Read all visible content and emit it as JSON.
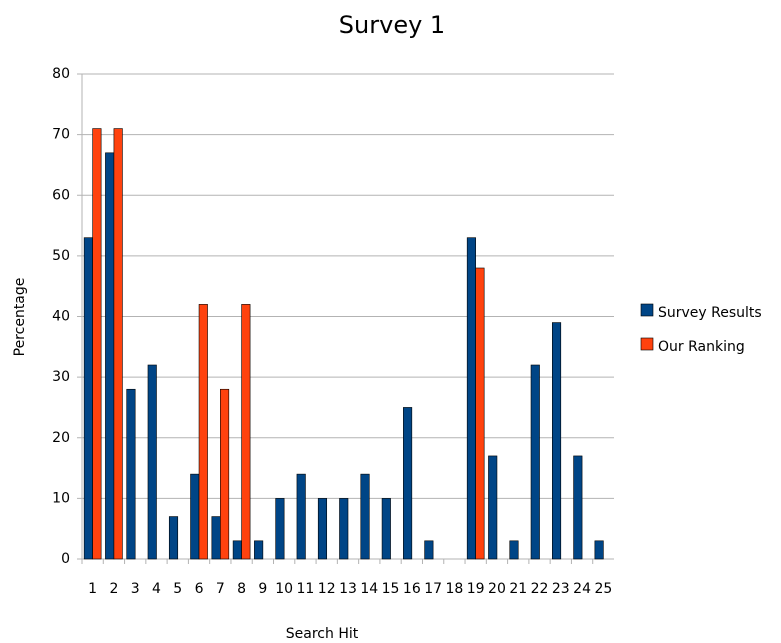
{
  "chart_data": {
    "type": "bar",
    "title": "Survey 1",
    "x_label": "Search Hit",
    "y_label": "Percentage",
    "categories": [
      "1",
      "2",
      "3",
      "4",
      "5",
      "6",
      "7",
      "8",
      "9",
      "10",
      "11",
      "12",
      "13",
      "14",
      "15",
      "16",
      "17",
      "18",
      "19",
      "20",
      "21",
      "22",
      "23",
      "24",
      "25"
    ],
    "series": [
      {
        "name": "Survey Results",
        "color": "#004586",
        "values": [
          53,
          67,
          28,
          32,
          7,
          14,
          7,
          3,
          3,
          10,
          14,
          10,
          10,
          14,
          10,
          25,
          3,
          0,
          53,
          17,
          3,
          32,
          39,
          17,
          3
        ]
      },
      {
        "name": "Our Ranking",
        "color": "#ff420e",
        "values": [
          71,
          71,
          0,
          0,
          0,
          42,
          28,
          42,
          0,
          0,
          0,
          0,
          0,
          0,
          0,
          0,
          0,
          0,
          48,
          0,
          0,
          0,
          0,
          0,
          0
        ]
      }
    ],
    "ylim": [
      0,
      80
    ],
    "yticks": [
      0,
      10,
      20,
      30,
      40,
      50,
      60,
      70,
      80
    ],
    "grid": true,
    "legend": "right"
  }
}
